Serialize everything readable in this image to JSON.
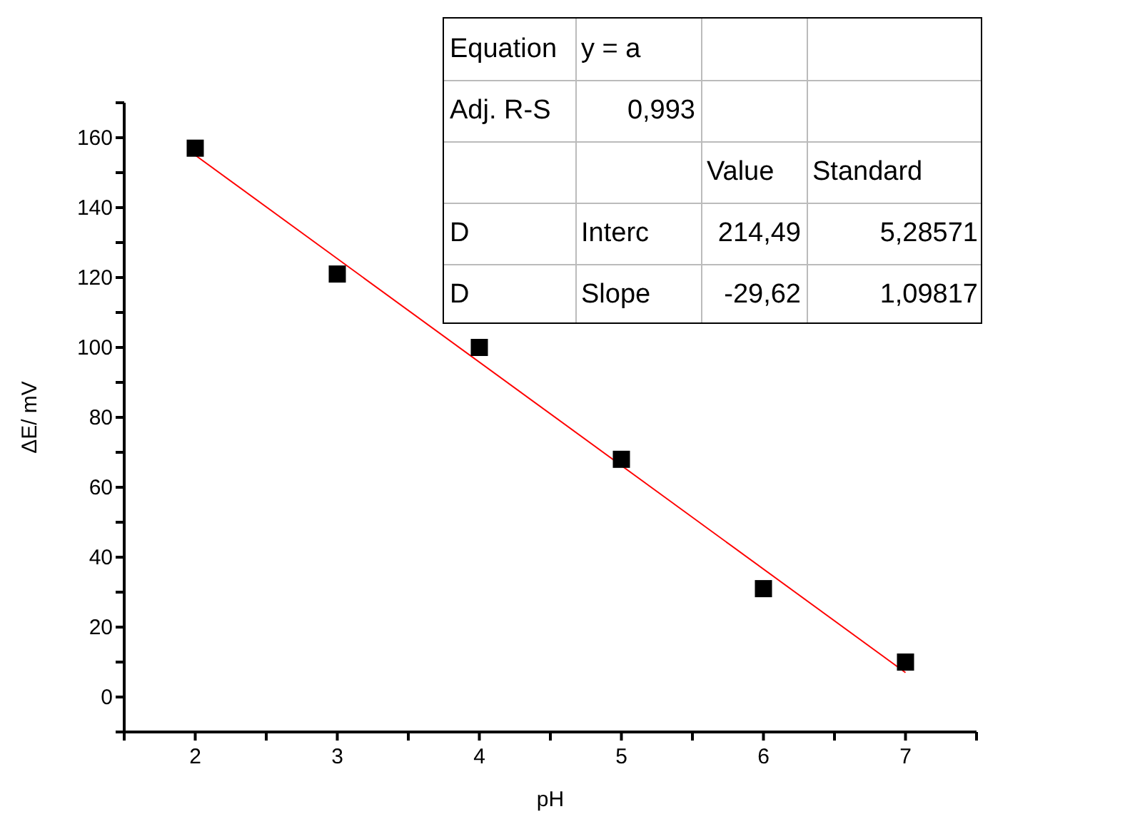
{
  "chart_data": {
    "type": "scatter",
    "xlabel": "pH",
    "ylabel": "ΔE/ mV",
    "x": [
      2,
      3,
      4,
      5,
      6,
      7
    ],
    "series": [
      {
        "color": "#000000",
        "marker": "square",
        "values": [
          157,
          121,
          100,
          68,
          31,
          10
        ]
      },
      {
        "type": "line",
        "color": "#ff0000",
        "marker": "none",
        "line_style": "solid",
        "x": [
          2,
          7
        ],
        "values": [
          155,
          7
        ]
      }
    ],
    "xlim": [
      1.5,
      7.5
    ],
    "xticks": [
      {
        "value": 1.5,
        "label": null
      },
      2,
      {
        "value": 2.5,
        "label": null
      },
      3,
      {
        "value": 3.5,
        "label": null
      },
      4,
      {
        "value": 4.5,
        "label": null
      },
      5,
      {
        "value": 5.5,
        "label": null
      },
      6,
      {
        "value": 6.5,
        "label": null
      },
      7,
      {
        "value": 7.5,
        "label": null
      }
    ],
    "ylim": [
      -10,
      170
    ],
    "yticks": [
      {
        "value": -10,
        "label": null
      },
      0,
      {
        "value": 10,
        "label": null
      },
      20,
      {
        "value": 30,
        "label": null
      },
      40,
      {
        "value": 50,
        "label": null
      },
      60,
      {
        "value": 70,
        "label": null
      },
      80,
      {
        "value": 90,
        "label": null
      },
      100,
      {
        "value": 110,
        "label": null
      },
      120,
      {
        "value": 130,
        "label": null
      },
      140,
      {
        "value": 150,
        "label": null
      },
      160,
      {
        "value": 170,
        "label": null
      }
    ],
    "grid": false,
    "legend": false,
    "annotations": [
      "Equation",
      "y = a",
      "Adj. R-S",
      "0,993",
      "Value",
      "Standard",
      "D",
      "Interc",
      "214,49",
      "5,28571",
      "D",
      "Slope",
      "-29,62",
      "1,09817"
    ]
  }
}
